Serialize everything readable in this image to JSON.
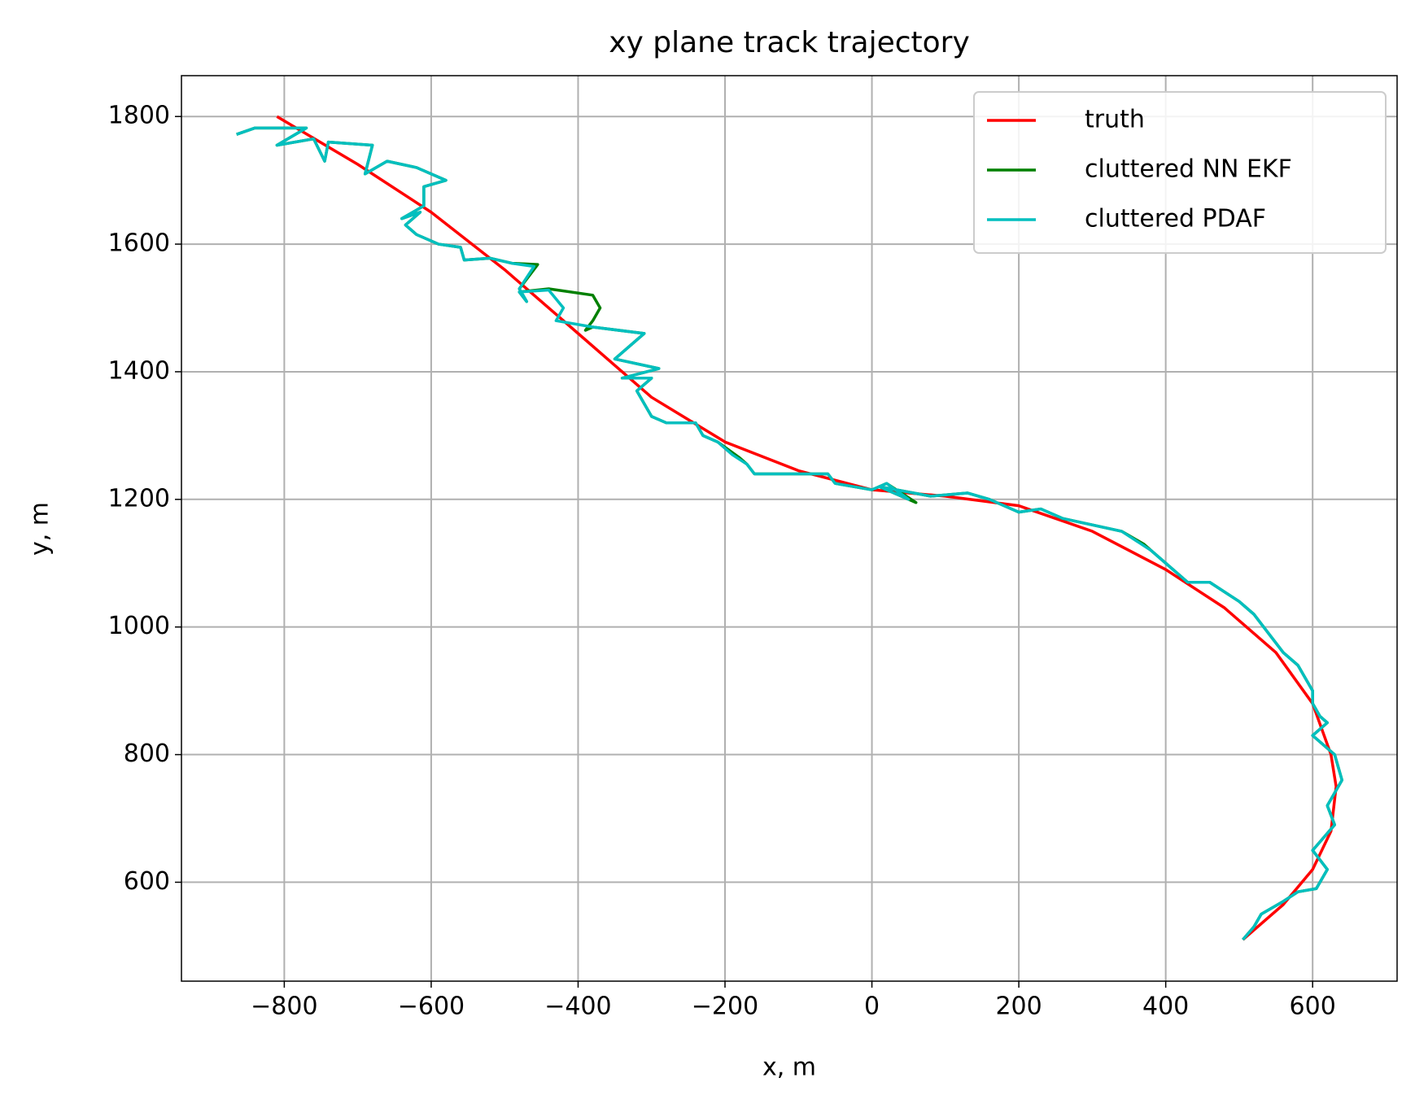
{
  "chart_data": {
    "type": "line",
    "title": "xy plane track trajectory",
    "x_label": "x, m",
    "y_label": "y, m",
    "xlim": [
      -940,
      715
    ],
    "ylim": [
      445,
      1864
    ],
    "xticks": [
      {
        "value": -800,
        "label": "−800"
      },
      {
        "value": -600,
        "label": "−600"
      },
      {
        "value": -400,
        "label": "−400"
      },
      {
        "value": -200,
        "label": "−200"
      },
      0,
      200,
      400,
      600
    ],
    "yticks": [
      600,
      800,
      1000,
      1200,
      1400,
      1600,
      1800
    ],
    "grid": true,
    "legend": "upper right",
    "series": [
      {
        "name": "truth",
        "color": "#ff0000",
        "x": [
          -810,
          -700,
          -600,
          -500,
          -400,
          -300,
          -200,
          -100,
          0,
          100,
          200,
          300,
          400,
          480,
          550,
          600,
          625,
          632,
          625,
          600,
          560,
          505
        ],
        "values": [
          1800,
          1725,
          1650,
          1560,
          1460,
          1360,
          1290,
          1245,
          1215,
          1205,
          1190,
          1150,
          1090,
          1030,
          960,
          880,
          800,
          750,
          680,
          620,
          565,
          510
        ]
      },
      {
        "name": "cluttered NN EKF",
        "color": "#008000",
        "x": [
          -865,
          -840,
          -790,
          -770,
          -810,
          -760,
          -745,
          -740,
          -680,
          -690,
          -660,
          -620,
          -580,
          -610,
          -610,
          -640,
          -615,
          -635,
          -620,
          -590,
          -560,
          -555,
          -520,
          -490,
          -455,
          -480,
          -470,
          -480,
          -440,
          -380,
          -370,
          -380,
          -390,
          -380,
          -310,
          -350,
          -290,
          -340,
          -300,
          -320,
          -300,
          -280,
          -240,
          -230,
          -210,
          -180,
          -170,
          -160,
          -100,
          -60,
          -50,
          0,
          20,
          60,
          10,
          80,
          130,
          160,
          200,
          230,
          260,
          300,
          340,
          370,
          400,
          430,
          460,
          500,
          520,
          540,
          560,
          580,
          600,
          600,
          610,
          620,
          600,
          630,
          640,
          620,
          630,
          600,
          620,
          605,
          580,
          560,
          530,
          520,
          505
        ],
        "values": [
          1772,
          1782,
          1782,
          1782,
          1755,
          1765,
          1730,
          1760,
          1755,
          1710,
          1730,
          1720,
          1700,
          1690,
          1660,
          1640,
          1650,
          1630,
          1615,
          1600,
          1595,
          1575,
          1578,
          1570,
          1568,
          1530,
          1510,
          1525,
          1530,
          1520,
          1500,
          1480,
          1465,
          1470,
          1460,
          1420,
          1405,
          1390,
          1390,
          1370,
          1330,
          1320,
          1320,
          1300,
          1290,
          1265,
          1255,
          1240,
          1240,
          1240,
          1225,
          1215,
          1225,
          1195,
          1220,
          1205,
          1210,
          1200,
          1180,
          1185,
          1170,
          1160,
          1150,
          1130,
          1100,
          1070,
          1070,
          1040,
          1020,
          990,
          960,
          940,
          900,
          880,
          860,
          850,
          830,
          800,
          760,
          720,
          690,
          650,
          620,
          590,
          585,
          570,
          550,
          530,
          510
        ]
      },
      {
        "name": "cluttered PDAF",
        "color": "#00bfbf",
        "x": [
          -865,
          -840,
          -790,
          -770,
          -810,
          -760,
          -745,
          -740,
          -680,
          -690,
          -660,
          -620,
          -580,
          -610,
          -610,
          -640,
          -615,
          -635,
          -620,
          -590,
          -560,
          -555,
          -520,
          -490,
          -460,
          -480,
          -470,
          -480,
          -440,
          -420,
          -430,
          -380,
          -310,
          -350,
          -290,
          -340,
          -300,
          -320,
          -300,
          -280,
          -240,
          -230,
          -210,
          -190,
          -170,
          -160,
          -100,
          -60,
          -50,
          0,
          20,
          50,
          10,
          80,
          130,
          160,
          200,
          230,
          260,
          300,
          340,
          380,
          400,
          430,
          460,
          500,
          520,
          540,
          560,
          580,
          600,
          600,
          610,
          620,
          600,
          630,
          640,
          620,
          630,
          600,
          620,
          605,
          580,
          560,
          530,
          520,
          505
        ],
        "values": [
          1772,
          1782,
          1782,
          1782,
          1755,
          1765,
          1730,
          1760,
          1755,
          1710,
          1730,
          1720,
          1700,
          1690,
          1660,
          1640,
          1650,
          1630,
          1615,
          1600,
          1595,
          1575,
          1578,
          1570,
          1565,
          1530,
          1510,
          1525,
          1528,
          1500,
          1480,
          1470,
          1460,
          1420,
          1405,
          1390,
          1390,
          1370,
          1330,
          1320,
          1320,
          1300,
          1290,
          1270,
          1255,
          1240,
          1240,
          1240,
          1225,
          1215,
          1225,
          1200,
          1220,
          1205,
          1210,
          1200,
          1180,
          1185,
          1170,
          1160,
          1150,
          1120,
          1100,
          1070,
          1070,
          1040,
          1020,
          990,
          960,
          940,
          900,
          880,
          860,
          850,
          830,
          800,
          760,
          720,
          690,
          650,
          620,
          590,
          585,
          570,
          550,
          530,
          510
        ]
      }
    ]
  }
}
